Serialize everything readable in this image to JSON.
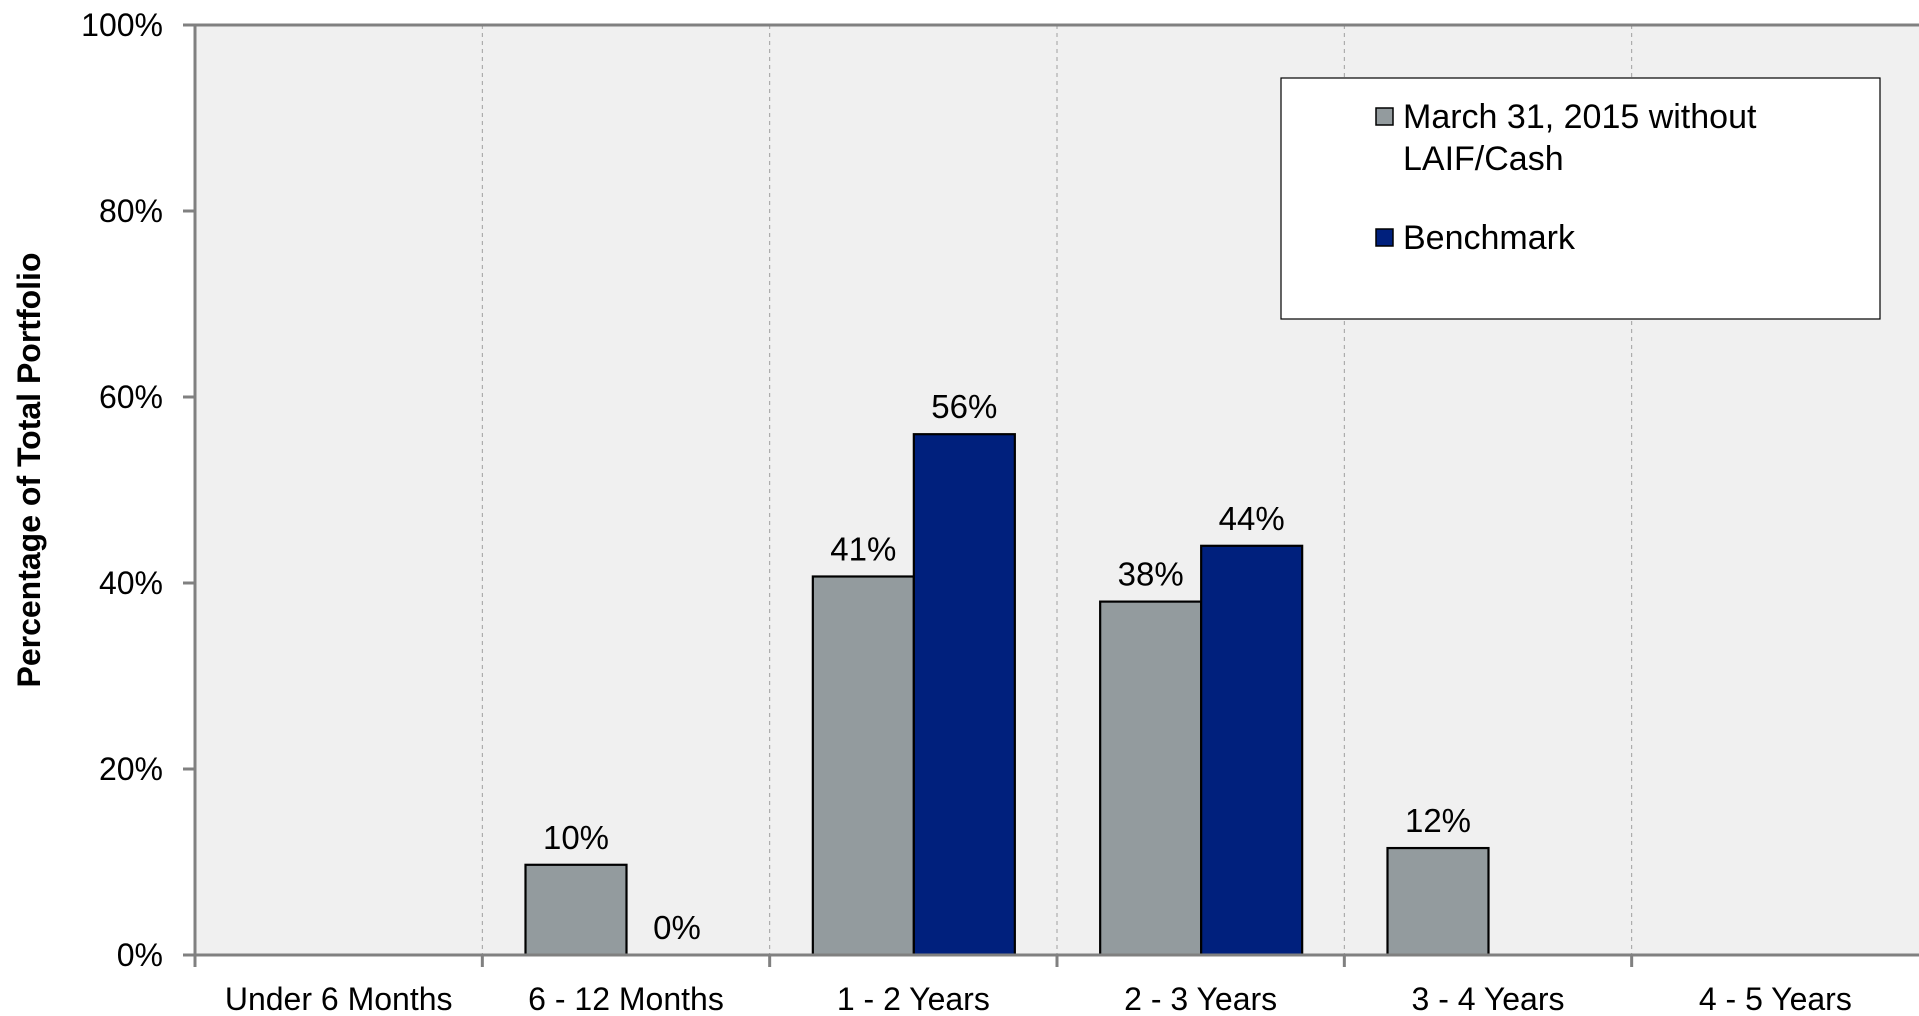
{
  "chart_data": {
    "type": "bar",
    "categories": [
      "Under 6 Months",
      "6 - 12 Months",
      "1 - 2 Years",
      "2 - 3 Years",
      "3 - 4 Years",
      "4 - 5 Years"
    ],
    "series": [
      {
        "name": "March 31, 2015 without LAIF/Cash",
        "name_lines": [
          "March 31, 2015 without",
          "LAIF/Cash"
        ],
        "color": "#939b9e",
        "values": [
          null,
          10,
          41,
          38,
          12,
          null
        ],
        "labels": [
          "",
          "10%",
          "41%",
          "38%",
          "12%",
          ""
        ],
        "heights": [
          null,
          9.7,
          40.7,
          38.0,
          11.5,
          null
        ]
      },
      {
        "name": "Benchmark",
        "name_lines": [
          "Benchmark"
        ],
        "color": "#00207d",
        "values": [
          null,
          0,
          56,
          44,
          null,
          null
        ],
        "labels": [
          "",
          "0%",
          "56%",
          "44%",
          "",
          ""
        ],
        "heights": [
          null,
          0,
          56.0,
          44.0,
          null,
          null
        ]
      }
    ],
    "ylabel": "Percentage of Total Portfolio",
    "ylim": [
      0,
      100
    ],
    "yticks": [
      {
        "value": 0,
        "label": "0%"
      },
      {
        "value": 20,
        "label": "20%"
      },
      {
        "value": 40,
        "label": "40%"
      },
      {
        "value": 60,
        "label": "60%"
      },
      {
        "value": 80,
        "label": "80%"
      },
      {
        "value": 100,
        "label": "100%"
      }
    ],
    "grid": "vertical-dashed",
    "legend_position": "top-right",
    "plot_background": "#f0f0f0"
  }
}
